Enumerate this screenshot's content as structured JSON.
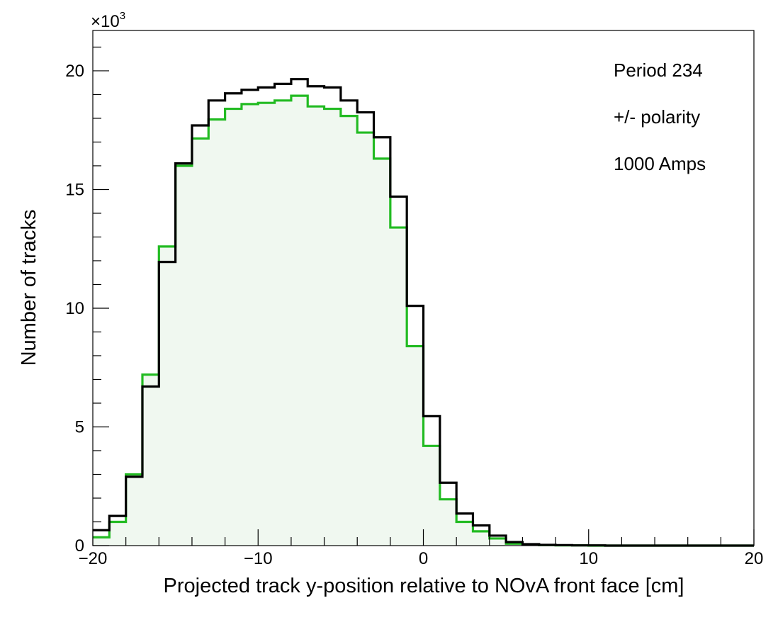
{
  "chart_data": {
    "type": "histogram",
    "title": "",
    "xlabel": "Projected track y-position relative to NOvA front face [cm]",
    "ylabel": "Number of tracks",
    "y_multiplier_base": "×10",
    "y_multiplier_exp": "3",
    "xlim": [
      -20,
      20
    ],
    "ylim": [
      0,
      21.7
    ],
    "x_ticks": [
      {
        "value": -20,
        "label": "−20"
      },
      {
        "value": -10,
        "label": "−10"
      },
      {
        "value": 0,
        "label": "0"
      },
      {
        "value": 10,
        "label": "10"
      },
      {
        "value": 20,
        "label": "20"
      }
    ],
    "y_ticks": [
      {
        "value": 0,
        "label": "0"
      },
      {
        "value": 5,
        "label": "5"
      },
      {
        "value": 10,
        "label": "10"
      },
      {
        "value": 15,
        "label": "15"
      },
      {
        "value": 20,
        "label": "20"
      }
    ],
    "bin_edges_start": -20,
    "bin_width": 1,
    "grid": false,
    "annotations": [
      "Period 234",
      "+/- polarity",
      "1000 Amps"
    ],
    "series": [
      {
        "color": "#22bb22",
        "fill": "#f0f8f0",
        "values": [
          0.35,
          1.0,
          3.0,
          7.2,
          12.6,
          16.0,
          17.15,
          17.95,
          18.4,
          18.6,
          18.65,
          18.75,
          18.95,
          18.5,
          18.4,
          18.1,
          17.4,
          16.3,
          13.4,
          8.4,
          4.2,
          1.95,
          1.0,
          0.6,
          0.3,
          0.08,
          0.04,
          0.02,
          0.01,
          0.01,
          0,
          0,
          0,
          0,
          0,
          0,
          0,
          0,
          0,
          0
        ]
      },
      {
        "color": "#000000",
        "fill": "none",
        "values": [
          0.65,
          1.25,
          2.9,
          6.7,
          11.95,
          16.1,
          17.7,
          18.75,
          19.05,
          19.2,
          19.3,
          19.45,
          19.65,
          19.35,
          19.3,
          18.75,
          18.25,
          17.2,
          14.7,
          10.1,
          5.45,
          2.65,
          1.35,
          0.85,
          0.42,
          0.15,
          0.06,
          0.03,
          0.02,
          0.01,
          0.01,
          0,
          0,
          0,
          0,
          0,
          0,
          0,
          0,
          0
        ]
      }
    ]
  }
}
